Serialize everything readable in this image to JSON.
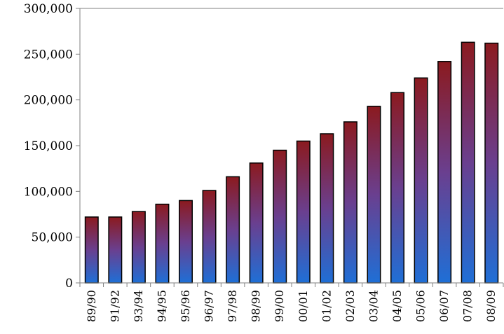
{
  "chart_data": {
    "type": "bar",
    "title": "",
    "xlabel": "",
    "ylabel": "",
    "categories": [
      "89/90",
      "91/92",
      "93/94",
      "94/95",
      "95/96",
      "96/97",
      "97/98",
      "98/99",
      "99/00",
      "00/01",
      "01/02",
      "02/03",
      "03/04",
      "04/05",
      "05/06",
      "06/07",
      "07/08",
      "08/09"
    ],
    "values": [
      72000,
      72000,
      78000,
      86000,
      90000,
      101000,
      116000,
      131000,
      145000,
      155000,
      163000,
      176000,
      193000,
      208000,
      224000,
      242000,
      263000,
      262000
    ],
    "ylim": [
      0,
      300000
    ],
    "yticks": [
      0,
      50000,
      100000,
      150000,
      200000,
      250000,
      300000
    ],
    "ytick_labels": [
      "0",
      "50,000",
      "100,000",
      "150,000",
      "200,000",
      "250,000",
      "300,000"
    ],
    "grid": false,
    "legend": "none",
    "colors": {
      "bar_top": "#8b1a1f",
      "bar_mid": "#6a3f8f",
      "bar_bottom": "#1f6fd6",
      "bar_outline": "#000000",
      "axis": "#808080"
    }
  }
}
